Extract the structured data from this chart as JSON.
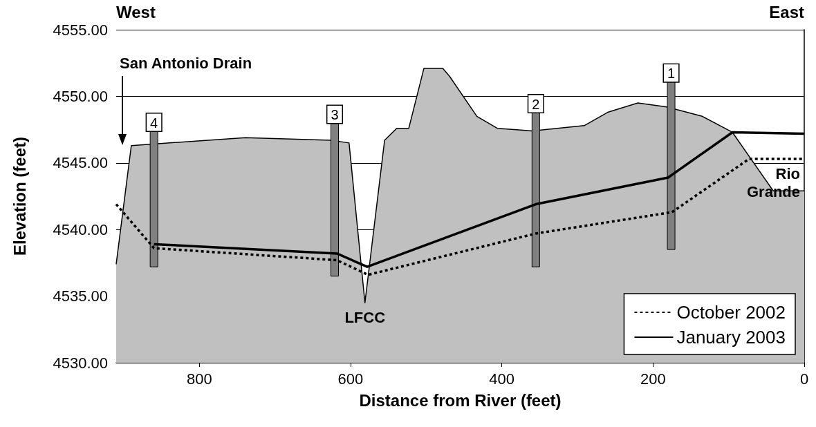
{
  "chart_data": {
    "type": "line",
    "xlabel": "Distance from River (feet)",
    "ylabel": "Elevation (feet)",
    "xlim": [
      910,
      0
    ],
    "xticks": [
      0,
      200,
      400,
      600,
      800
    ],
    "ylim": [
      4530,
      4555
    ],
    "yticks": [
      {
        "value": 4530,
        "label": "4530.00"
      },
      {
        "value": 4535,
        "label": "4535.00"
      },
      {
        "value": 4540,
        "label": "4540.00"
      },
      {
        "value": 4545,
        "label": "4545.00"
      },
      {
        "value": 4550,
        "label": "4550.00"
      },
      {
        "value": 4555,
        "label": "4555.00"
      }
    ],
    "grid": "y",
    "legend": "bottom right",
    "marker": "none",
    "annotations": [
      "West",
      "East",
      "San Antonio Drain",
      "Rio Grande",
      {
        "text": "LFCC",
        "x": 581,
        "y": 4534.5
      },
      {
        "text": "4",
        "x": 860,
        "y": 4547.4
      },
      {
        "text": "3",
        "x": 621,
        "y": 4548.0
      },
      {
        "text": "2",
        "x": 355,
        "y": 4548.8
      },
      {
        "text": "1",
        "x": 176,
        "y": 4551.1
      }
    ],
    "series": [
      {
        "type": "area",
        "color": "#c0c0c0",
        "x": [
          910,
          890,
          739,
          626,
          602,
          581,
          555,
          539,
          523,
          503,
          478,
          469,
          433,
          406,
          360,
          291,
          260,
          220,
          182,
          135,
          95,
          41,
          0
        ],
        "values": [
          4537.4,
          4546.3,
          4546.9,
          4546.7,
          4546.5,
          4534.5,
          4546.7,
          4547.6,
          4547.6,
          4552.1,
          4552.1,
          4551.5,
          4548.5,
          4547.6,
          4547.4,
          4547.8,
          4548.8,
          4549.5,
          4549.2,
          4548.5,
          4547.3,
          4542.9,
          4542.9
        ]
      },
      {
        "type": "bar",
        "color": "#808080",
        "x": [
          860,
          621,
          355,
          176
        ],
        "base": [
          4537.2,
          4536.5,
          4537.2,
          4538.5
        ],
        "values": [
          10.2,
          11.5,
          11.6,
          12.6
        ]
      },
      {
        "name": "October 2002",
        "color": "#000000",
        "line_style": "dotted",
        "x": [
          910,
          860,
          618,
          577,
          355,
          175,
          73,
          0
        ],
        "values": [
          4541.9,
          4538.6,
          4537.7,
          4536.6,
          4539.7,
          4541.3,
          4545.3,
          4545.3
        ]
      },
      {
        "name": "January 2003",
        "color": "#000000",
        "line_style": "solid",
        "x": [
          860,
          618,
          578,
          355,
          180,
          95,
          0
        ],
        "values": [
          4538.9,
          4538.2,
          4537.2,
          4541.9,
          4543.9,
          4547.3,
          4547.2
        ]
      }
    ]
  }
}
